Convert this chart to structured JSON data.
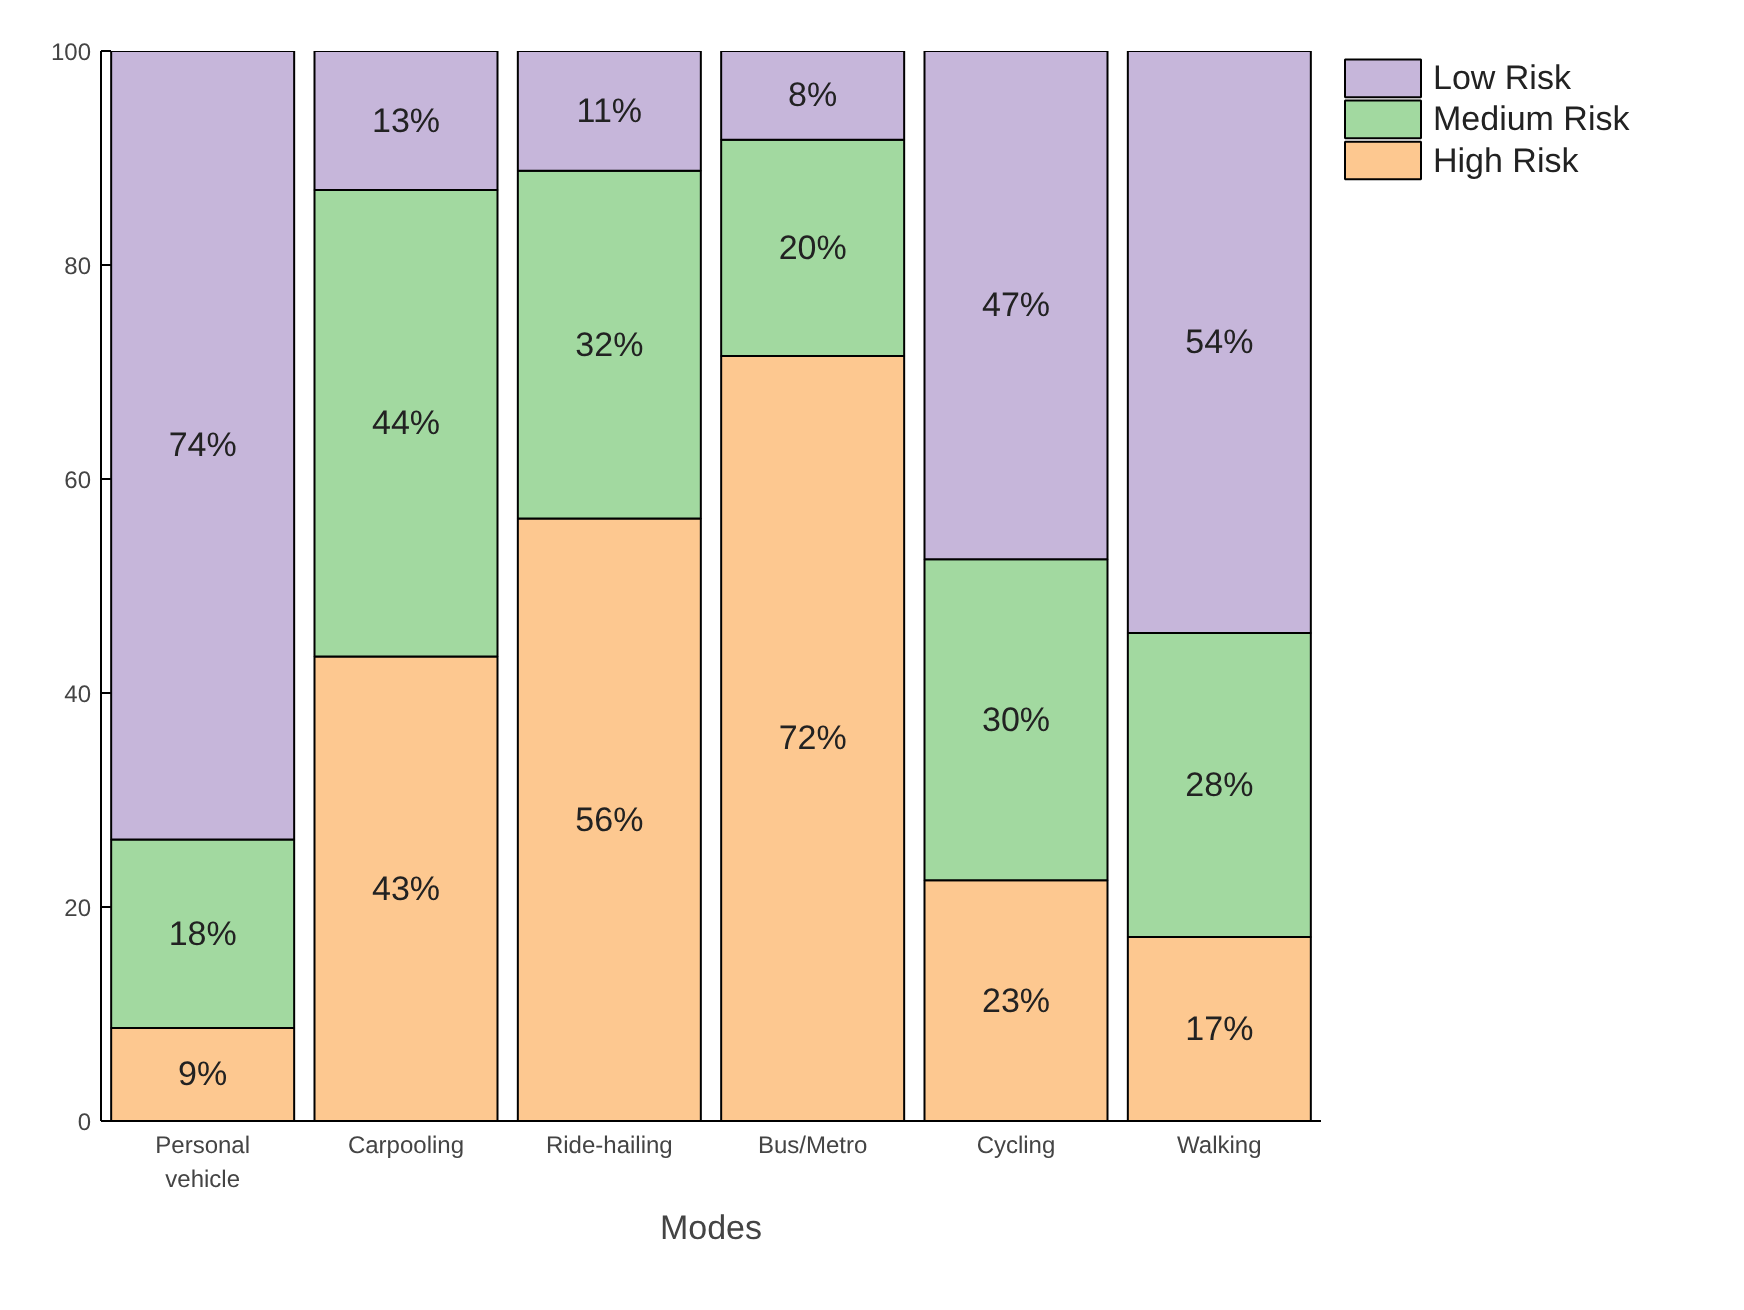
{
  "chart_data": {
    "type": "bar",
    "stacked": true,
    "xlabel": "Modes",
    "categories": [
      "Personal vehicle",
      "Carpooling",
      "Ride-hailing",
      "Bus/Metro",
      "Cycling",
      "Walking"
    ],
    "series": [
      {
        "name": "High Risk",
        "color": "#fdc890",
        "values": [
          8.7,
          43.4,
          56.3,
          71.5,
          22.5,
          17.2
        ],
        "value_labels": [
          "9%",
          "43%",
          "56%",
          "72%",
          "23%",
          "17%"
        ]
      },
      {
        "name": "Medium Risk",
        "color": "#a2d9a0",
        "values": [
          17.6,
          43.6,
          32.5,
          20.2,
          30,
          28.4
        ],
        "value_labels": [
          "18%",
          "44%",
          "32%",
          "20%",
          "30%",
          "28%"
        ]
      },
      {
        "name": "Low Risk",
        "color": "#c6b6da",
        "values": [
          73.7,
          13,
          11.2,
          8.3,
          47.5,
          54.4
        ],
        "value_labels": [
          "74%",
          "13%",
          "11%",
          "8%",
          "47%",
          "54%"
        ]
      }
    ],
    "ylim": [
      0,
      100
    ],
    "yticks": [
      0,
      20,
      40,
      60,
      80,
      100
    ],
    "grid": false,
    "legend": "top right"
  }
}
